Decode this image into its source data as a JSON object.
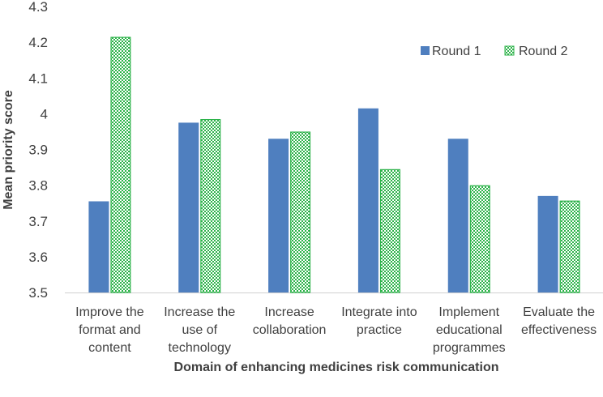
{
  "chart_data": {
    "type": "bar",
    "title": "",
    "xlabel": "Domain of enhancing medicines risk communication",
    "ylabel": "Mean priority score",
    "ylim": [
      3.5,
      4.3
    ],
    "yticks": [
      3.5,
      3.6,
      3.7,
      3.8,
      3.9,
      4,
      4.1,
      4.2,
      4.3
    ],
    "grid": false,
    "legend_position": "top-right",
    "categories": [
      [
        "Improve the",
        "format and",
        "content"
      ],
      [
        "Increase the",
        "use of",
        "technology"
      ],
      [
        "Increase",
        "collaboration"
      ],
      [
        "Integrate into",
        "practice"
      ],
      [
        "Implement",
        "educational",
        "programmes"
      ],
      [
        "Evaluate the",
        "effectiveness"
      ]
    ],
    "series": [
      {
        "name": "Round 1",
        "color": "#4f7fbf",
        "pattern": "solid",
        "values": [
          3.755,
          3.975,
          3.93,
          4.015,
          3.93,
          3.77
        ]
      },
      {
        "name": "Round 2",
        "color": "#2db34a",
        "pattern": "checkered",
        "values": [
          4.215,
          3.985,
          3.95,
          3.845,
          3.8,
          3.757
        ]
      }
    ]
  }
}
